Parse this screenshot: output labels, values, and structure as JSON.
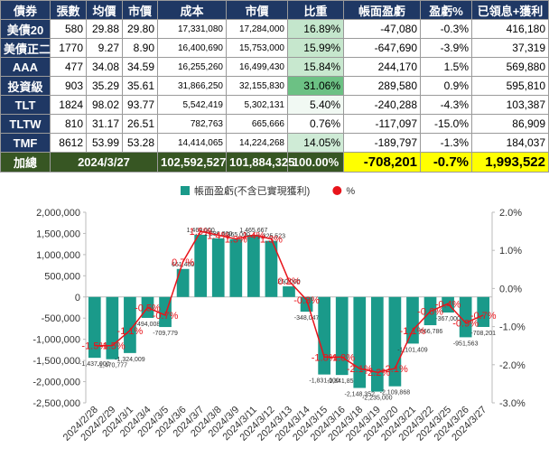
{
  "table": {
    "header": [
      "債券",
      "張數",
      "均價",
      "市價",
      "成本",
      "市價",
      "比重",
      "帳面盈虧",
      "盈虧%",
      "已領息+獲利"
    ],
    "rows": [
      [
        "美債20",
        "580",
        "29.88",
        "29.80",
        "17,331,080",
        "17,284,000",
        "16.89%",
        "-47,080",
        "-0.3%",
        "416,180"
      ],
      [
        "美債正二",
        "1770",
        "9.27",
        "8.90",
        "16,400,690",
        "15,753,000",
        "15.99%",
        "-647,690",
        "-3.9%",
        "37,319"
      ],
      [
        "AAA",
        "477",
        "34.08",
        "34.59",
        "16,255,260",
        "16,499,430",
        "15.84%",
        "244,170",
        "1.5%",
        "569,880"
      ],
      [
        "投資級",
        "903",
        "35.29",
        "35.61",
        "31,866,250",
        "32,155,830",
        "31.06%",
        "289,580",
        "0.9%",
        "595,810"
      ],
      [
        "TLT",
        "1824",
        "98.02",
        "93.77",
        "5,542,419",
        "5,302,131",
        "5.40%",
        "-240,288",
        "-4.3%",
        "103,387"
      ],
      [
        "TLTW",
        "810",
        "31.17",
        "26.51",
        "782,763",
        "665,666",
        "0.76%",
        "-117,097",
        "-15.0%",
        "86,909"
      ],
      [
        "TMF",
        "8612",
        "53.99",
        "53.28",
        "14,414,065",
        "14,224,268",
        "14.05%",
        "-189,797",
        "-1.3%",
        "184,037"
      ]
    ],
    "total": [
      "加總",
      "2024/3/27",
      "102,592,527",
      "101,884,325",
      "100.00%",
      "-708,201",
      "-0.7%",
      "1,993,522"
    ]
  },
  "chart_data": {
    "type": "bar",
    "categories": [
      "2024/2/28",
      "2024/2/29",
      "2024/3/1",
      "2024/3/4",
      "2024/3/5",
      "2024/3/6",
      "2024/3/7",
      "2024/3/8",
      "2024/3/9",
      "2024/3/11",
      "2024/3/12",
      "2024/3/13",
      "2024/3/14",
      "2024/3/15",
      "2024/3/16",
      "2024/3/18",
      "2024/3/19",
      "2024/3/20",
      "2024/3/21",
      "2024/3/22",
      "2024/3/25",
      "2024/3/26",
      "2024/3/27"
    ],
    "series": [
      {
        "name": "帳面盈虧(不含已實現獲利)",
        "type": "bar",
        "color": "#1a9a8a",
        "values": [
          -1437000,
          -1470777,
          -1324009,
          -494008,
          -709779,
          661400,
          1469000,
          1386000,
          1365000,
          1465667,
          1325523,
          250000,
          -348047,
          -1831000,
          -1841852,
          -2148352,
          -2235000,
          -2109868,
          -1101409,
          -666786,
          -367000,
          -951563,
          -708201
        ],
        "value_labels": [
          "-1,437,000",
          "-1,470,777",
          "-1,324,009",
          "-494,008",
          "-709,779",
          "661,400",
          "1,469,000",
          "1,386,000",
          "1,365,000",
          "1,465,667",
          "1,325,523",
          "250,000",
          "-348,047",
          "-1,831,000",
          "-1,841,852",
          "-2,148,352",
          "-2,235,000",
          "-2,109,868",
          "-1,101,409",
          "-666,786",
          "-367,000",
          "-951,563",
          "-708,201"
        ]
      },
      {
        "name": "%",
        "type": "line",
        "axis": "y2",
        "color": "#e8141b",
        "values": [
          -1.5,
          -1.5,
          -1.1,
          -0.5,
          -0.7,
          0.7,
          1.5,
          1.4,
          1.3,
          1.4,
          1.3,
          0.2,
          -0.3,
          -1.8,
          -1.8,
          -2.1,
          -2.2,
          -2.1,
          -1.1,
          -0.6,
          -0.4,
          -0.9,
          -0.7
        ],
        "value_labels": [
          "-1.5%",
          "-1.5%",
          "-1.1%",
          "-0.5%",
          "-0.7%",
          "0.7%",
          "1.5%",
          "1.4%",
          "1.3%",
          "1.4%",
          "1.3%",
          "0.2%",
          "-0.3%",
          "-1.8%",
          "-1.8%",
          "-2.1%",
          "-2.2%",
          "-2.1%",
          "-1.1%",
          "-0.6%",
          "-0.4%",
          "-0.9%",
          "-0.7%"
        ]
      }
    ],
    "ylim": [
      -2500000,
      2000000
    ],
    "yticks": [
      {
        "value": -2500000,
        "label": "-2,500,000"
      },
      {
        "value": -2000000,
        "label": "-2,000,000"
      },
      {
        "value": -1500000,
        "label": "-1,500,000"
      },
      {
        "value": -1000000,
        "label": "-1,000,000"
      },
      {
        "value": -500000,
        "label": "-500,000"
      },
      0,
      {
        "value": 500000,
        "label": "500,000"
      },
      {
        "value": 1000000,
        "label": "1,000,000"
      },
      {
        "value": 1500000,
        "label": "1,500,000"
      },
      {
        "value": 2000000,
        "label": "2,000,000"
      }
    ],
    "y2lim": [
      -3,
      2
    ],
    "y2ticks": [
      {
        "value": -3,
        "label": "-3.0%"
      },
      {
        "value": -2,
        "label": "-2.0%"
      },
      {
        "value": -1,
        "label": "-1.0%"
      },
      {
        "value": 0,
        "label": "0.0%"
      },
      {
        "value": 1,
        "label": "1.0%"
      },
      {
        "value": 2,
        "label": "2.0%"
      }
    ],
    "grid": false,
    "legend": "top"
  }
}
